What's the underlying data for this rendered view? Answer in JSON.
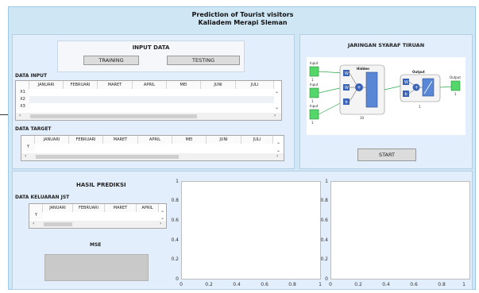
{
  "window": {
    "title_line1": "Prediction of Tourist visitors",
    "title_line2": "Kaliadem Merapi Sleman"
  },
  "input_panel": {
    "heading": "INPUT DATA",
    "training_label": "TRAINING",
    "testing_label": "TESTING",
    "data_input_label": "DATA INPUT",
    "data_target_label": "DATA TARGET",
    "columns": [
      "JANUARI",
      "FEBRUARI",
      "MARET",
      "APRIL",
      "MEI",
      "JUNI",
      "JULI"
    ],
    "input_rows": [
      "X1",
      "X2",
      "X3"
    ],
    "target_rows": [
      "Y"
    ]
  },
  "network_panel": {
    "heading": "JARINGAN SYARAF TIRUAN",
    "diagram": {
      "inputs": [
        "Input",
        "Input",
        "Input"
      ],
      "input_sizes": [
        "1",
        "1",
        "1"
      ],
      "hidden_label": "Hidden",
      "hidden_size": "10",
      "output_layer_label": "Output",
      "output_size": "1",
      "output_label": "Output",
      "output_value": "1",
      "weight_symbol": "W",
      "bias_symbol": "b",
      "sum_symbol": "+"
    },
    "start_label": "START"
  },
  "result_panel": {
    "heading": "HASIL PREDIKSI",
    "output_label": "DATA KELUARAN JST",
    "columns": [
      "JANUARI",
      "FEBRUARI",
      "MARET",
      "APRIL"
    ],
    "rows": [
      "Y"
    ],
    "mse_label": "MSE"
  },
  "chart_data": [
    {
      "type": "line",
      "series": [],
      "xlim": [
        0,
        1
      ],
      "ylim": [
        0,
        1
      ],
      "xticks": [
        "0",
        "0.2",
        "0.4",
        "0.6",
        "0.8",
        "1"
      ],
      "yticks": [
        "0",
        "0.2",
        "0.4",
        "0.6",
        "0.8",
        "1"
      ]
    },
    {
      "type": "line",
      "series": [],
      "xlim": [
        0,
        1
      ],
      "ylim": [
        0,
        1
      ],
      "xticks": [
        "0",
        "0.2",
        "0.4",
        "0.6",
        "0.8",
        "1"
      ],
      "yticks": [
        "0",
        "0.2",
        "0.4",
        "0.6",
        "0.8",
        "1"
      ]
    }
  ]
}
